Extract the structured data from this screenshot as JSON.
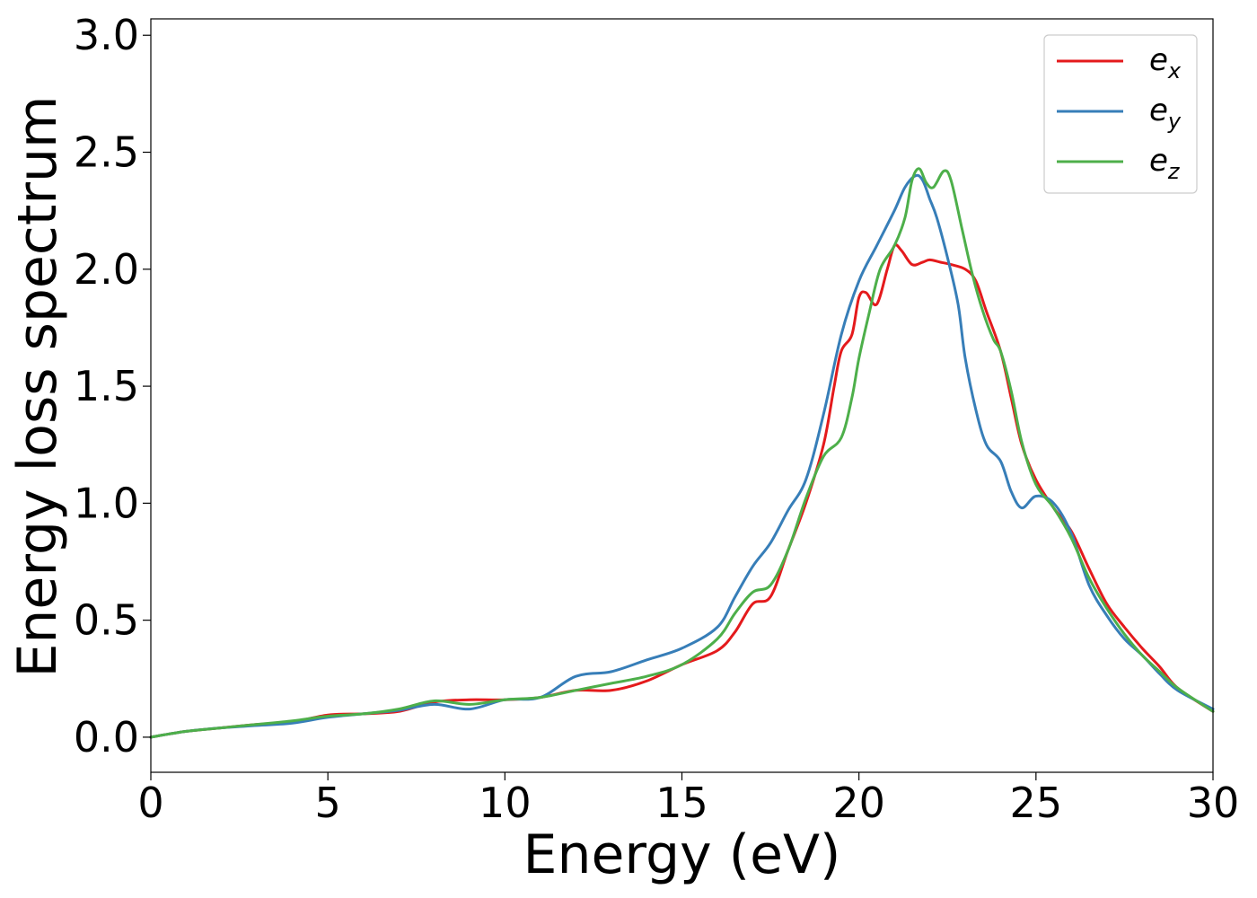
{
  "chart_data": {
    "type": "line",
    "title": "",
    "xlabel": "Energy (eV)",
    "ylabel": "Energy loss spectrum",
    "xlim": [
      0,
      30
    ],
    "ylim": [
      -0.15,
      3.07
    ],
    "xticks": [
      0,
      5,
      10,
      15,
      20,
      25,
      30
    ],
    "xtick_labels": [
      "0",
      "5",
      "10",
      "15",
      "20",
      "25",
      "30"
    ],
    "yticks": [
      0.0,
      0.5,
      1.0,
      1.5,
      2.0,
      2.5,
      3.0
    ],
    "ytick_labels": [
      "0.0",
      "0.5",
      "1.0",
      "1.5",
      "2.0",
      "2.5",
      "3.0"
    ],
    "grid": false,
    "legend_position": "top-right",
    "series": [
      {
        "name": "e_x",
        "base": "e",
        "sub": "x",
        "color": "#e41a1c",
        "x": [
          0,
          1,
          2,
          3,
          4,
          5,
          6,
          7,
          8,
          9,
          10,
          11,
          12,
          13,
          14,
          15,
          16,
          16.5,
          17,
          17.5,
          18,
          18.5,
          19,
          19.3,
          19.5,
          19.8,
          20,
          20.2,
          20.5,
          20.8,
          21,
          21.2,
          21.5,
          21.8,
          22,
          22.3,
          22.6,
          23,
          23.3,
          23.6,
          24,
          24.3,
          24.6,
          25,
          25.5,
          26,
          26.5,
          27,
          27.5,
          28,
          28.5,
          29,
          30
        ],
        "y": [
          0.0,
          0.025,
          0.04,
          0.055,
          0.065,
          0.095,
          0.1,
          0.11,
          0.15,
          0.16,
          0.16,
          0.17,
          0.2,
          0.2,
          0.24,
          0.31,
          0.37,
          0.45,
          0.57,
          0.6,
          0.8,
          1.0,
          1.25,
          1.5,
          1.65,
          1.72,
          1.88,
          1.9,
          1.85,
          2.0,
          2.1,
          2.08,
          2.02,
          2.03,
          2.04,
          2.03,
          2.02,
          2.0,
          1.95,
          1.82,
          1.65,
          1.45,
          1.25,
          1.1,
          0.98,
          0.88,
          0.72,
          0.57,
          0.47,
          0.38,
          0.3,
          0.21,
          0.11
        ]
      },
      {
        "name": "e_y",
        "base": "e",
        "sub": "y",
        "color": "#377eb8",
        "x": [
          0,
          1,
          2,
          3,
          4,
          5,
          6,
          7,
          8,
          9,
          10,
          11,
          12,
          13,
          14,
          15,
          16,
          16.5,
          17,
          17.5,
          18,
          18.5,
          19,
          19.5,
          20,
          20.5,
          21,
          21.3,
          21.6,
          21.8,
          22,
          22.2,
          22.5,
          22.8,
          23,
          23.3,
          23.6,
          24,
          24.3,
          24.6,
          25,
          25.5,
          26,
          26.5,
          27,
          27.5,
          28,
          28.5,
          29,
          30
        ],
        "y": [
          0.0,
          0.025,
          0.04,
          0.05,
          0.06,
          0.085,
          0.1,
          0.115,
          0.14,
          0.12,
          0.16,
          0.17,
          0.26,
          0.28,
          0.33,
          0.38,
          0.47,
          0.6,
          0.73,
          0.83,
          0.97,
          1.1,
          1.38,
          1.72,
          1.95,
          2.1,
          2.25,
          2.35,
          2.4,
          2.38,
          2.3,
          2.22,
          2.05,
          1.85,
          1.62,
          1.4,
          1.25,
          1.18,
          1.05,
          0.98,
          1.03,
          1.0,
          0.87,
          0.65,
          0.52,
          0.42,
          0.35,
          0.27,
          0.2,
          0.12
        ]
      },
      {
        "name": "e_z",
        "base": "e",
        "sub": "z",
        "color": "#4daf4a",
        "x": [
          0,
          1,
          2,
          3,
          4,
          5,
          6,
          7,
          8,
          9,
          10,
          11,
          12,
          13,
          14,
          15,
          16,
          16.5,
          17,
          17.5,
          18,
          18.5,
          19,
          19.5,
          19.8,
          20,
          20.3,
          20.6,
          21,
          21.3,
          21.5,
          21.7,
          21.9,
          22.1,
          22.4,
          22.6,
          22.9,
          23.2,
          23.5,
          23.8,
          24,
          24.3,
          24.6,
          25,
          25.5,
          26,
          26.5,
          27,
          27.5,
          28,
          28.5,
          29,
          30
        ],
        "y": [
          0.0,
          0.025,
          0.04,
          0.055,
          0.07,
          0.09,
          0.1,
          0.12,
          0.155,
          0.14,
          0.16,
          0.17,
          0.2,
          0.23,
          0.26,
          0.31,
          0.42,
          0.53,
          0.62,
          0.65,
          0.8,
          1.02,
          1.2,
          1.28,
          1.45,
          1.62,
          1.82,
          2.0,
          2.1,
          2.22,
          2.38,
          2.43,
          2.37,
          2.35,
          2.42,
          2.38,
          2.18,
          1.98,
          1.82,
          1.7,
          1.65,
          1.48,
          1.26,
          1.08,
          0.98,
          0.85,
          0.68,
          0.55,
          0.44,
          0.35,
          0.28,
          0.21,
          0.11
        ]
      }
    ]
  }
}
